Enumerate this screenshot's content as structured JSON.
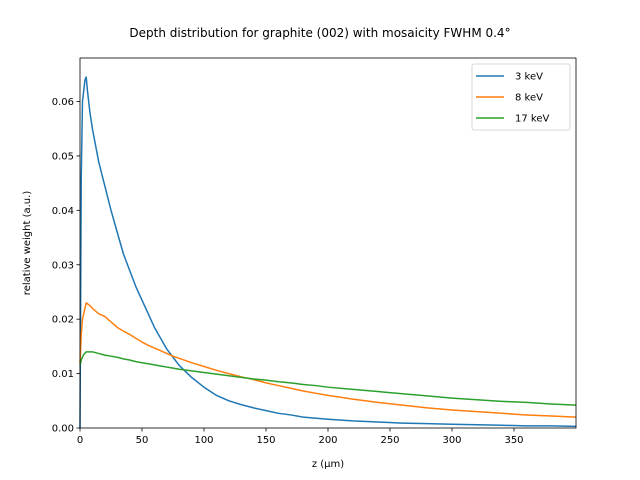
{
  "chart_data": {
    "type": "line",
    "title": "Depth distribution for graphite (002) with mosaicity FWHM 0.4°",
    "xlabel": "z (µm)",
    "ylabel": "relative weight (a.u.)",
    "xlim": [
      0,
      400
    ],
    "ylim": [
      0,
      0.068
    ],
    "xticks": [
      0,
      50,
      100,
      150,
      200,
      250,
      300,
      350
    ],
    "yticks": [
      0.0,
      0.01,
      0.02,
      0.03,
      0.04,
      0.05,
      0.06
    ],
    "xtick_labels": [
      "0",
      "50",
      "100",
      "150",
      "200",
      "250",
      "300",
      "350"
    ],
    "ytick_labels": [
      "0.00",
      "0.01",
      "0.02",
      "0.03",
      "0.04",
      "0.05",
      "0.06"
    ],
    "grid": false,
    "legend_position": "top-right",
    "series": [
      {
        "name": "3 keV",
        "color": "#1f77b4",
        "points": [
          [
            0,
            0.0
          ],
          [
            1,
            0.046
          ],
          [
            2,
            0.06
          ],
          [
            3,
            0.062
          ],
          [
            4,
            0.064
          ],
          [
            5,
            0.0645
          ],
          [
            6,
            0.062
          ],
          [
            8,
            0.058
          ],
          [
            10,
            0.055
          ],
          [
            15,
            0.049
          ],
          [
            20,
            0.0445
          ],
          [
            25,
            0.04
          ],
          [
            30,
            0.036
          ],
          [
            35,
            0.032
          ],
          [
            40,
            0.029
          ],
          [
            45,
            0.026
          ],
          [
            50,
            0.0235
          ],
          [
            55,
            0.021
          ],
          [
            60,
            0.0185
          ],
          [
            65,
            0.0165
          ],
          [
            70,
            0.0145
          ],
          [
            75,
            0.013
          ],
          [
            80,
            0.0115
          ],
          [
            90,
            0.0093
          ],
          [
            100,
            0.0075
          ],
          [
            110,
            0.006
          ],
          [
            120,
            0.005
          ],
          [
            130,
            0.0043
          ],
          [
            140,
            0.0037
          ],
          [
            150,
            0.0032
          ],
          [
            160,
            0.0027
          ],
          [
            170,
            0.0024
          ],
          [
            180,
            0.002
          ],
          [
            200,
            0.0016
          ],
          [
            220,
            0.0013
          ],
          [
            240,
            0.0011
          ],
          [
            260,
            0.0009
          ],
          [
            280,
            0.0008
          ],
          [
            300,
            0.0007
          ],
          [
            320,
            0.0006
          ],
          [
            340,
            0.0005
          ],
          [
            360,
            0.0004
          ],
          [
            380,
            0.0004
          ],
          [
            400,
            0.0003
          ]
        ]
      },
      {
        "name": "8 keV",
        "color": "#ff7f0e",
        "points": [
          [
            0,
            0.012
          ],
          [
            1,
            0.017
          ],
          [
            2,
            0.02
          ],
          [
            4,
            0.022
          ],
          [
            5,
            0.023
          ],
          [
            8,
            0.0225
          ],
          [
            10,
            0.022
          ],
          [
            15,
            0.021
          ],
          [
            20,
            0.0205
          ],
          [
            25,
            0.0195
          ],
          [
            30,
            0.0185
          ],
          [
            35,
            0.0178
          ],
          [
            40,
            0.0172
          ],
          [
            45,
            0.0165
          ],
          [
            50,
            0.0158
          ],
          [
            55,
            0.0152
          ],
          [
            60,
            0.0147
          ],
          [
            65,
            0.0142
          ],
          [
            70,
            0.0137
          ],
          [
            75,
            0.0132
          ],
          [
            80,
            0.0128
          ],
          [
            90,
            0.012
          ],
          [
            100,
            0.0113
          ],
          [
            110,
            0.0106
          ],
          [
            120,
            0.01
          ],
          [
            130,
            0.0094
          ],
          [
            140,
            0.0089
          ],
          [
            150,
            0.0083
          ],
          [
            160,
            0.0078
          ],
          [
            170,
            0.0073
          ],
          [
            180,
            0.0068
          ],
          [
            190,
            0.0064
          ],
          [
            200,
            0.006
          ],
          [
            220,
            0.0053
          ],
          [
            240,
            0.0047
          ],
          [
            260,
            0.0042
          ],
          [
            280,
            0.0037
          ],
          [
            300,
            0.0033
          ],
          [
            320,
            0.003
          ],
          [
            340,
            0.0027
          ],
          [
            360,
            0.0024
          ],
          [
            380,
            0.0022
          ],
          [
            400,
            0.002
          ]
        ]
      },
      {
        "name": "17 keV",
        "color": "#2ca02c",
        "points": [
          [
            0,
            0.0115
          ],
          [
            1,
            0.0125
          ],
          [
            3,
            0.0135
          ],
          [
            5,
            0.014
          ],
          [
            10,
            0.014
          ],
          [
            15,
            0.0137
          ],
          [
            20,
            0.0134
          ],
          [
            25,
            0.0132
          ],
          [
            30,
            0.013
          ],
          [
            35,
            0.0127
          ],
          [
            40,
            0.0125
          ],
          [
            45,
            0.0122
          ],
          [
            50,
            0.012
          ],
          [
            55,
            0.0118
          ],
          [
            60,
            0.0116
          ],
          [
            65,
            0.0114
          ],
          [
            70,
            0.0112
          ],
          [
            75,
            0.011
          ],
          [
            80,
            0.0108
          ],
          [
            90,
            0.0105
          ],
          [
            100,
            0.0102
          ],
          [
            110,
            0.0099
          ],
          [
            120,
            0.0096
          ],
          [
            130,
            0.0093
          ],
          [
            140,
            0.009
          ],
          [
            150,
            0.0088
          ],
          [
            160,
            0.0085
          ],
          [
            170,
            0.0083
          ],
          [
            180,
            0.008
          ],
          [
            190,
            0.0078
          ],
          [
            200,
            0.0075
          ],
          [
            220,
            0.0071
          ],
          [
            240,
            0.0067
          ],
          [
            260,
            0.0063
          ],
          [
            280,
            0.0059
          ],
          [
            300,
            0.0055
          ],
          [
            320,
            0.0052
          ],
          [
            340,
            0.0049
          ],
          [
            360,
            0.0047
          ],
          [
            380,
            0.0044
          ],
          [
            400,
            0.0042
          ]
        ]
      }
    ]
  }
}
